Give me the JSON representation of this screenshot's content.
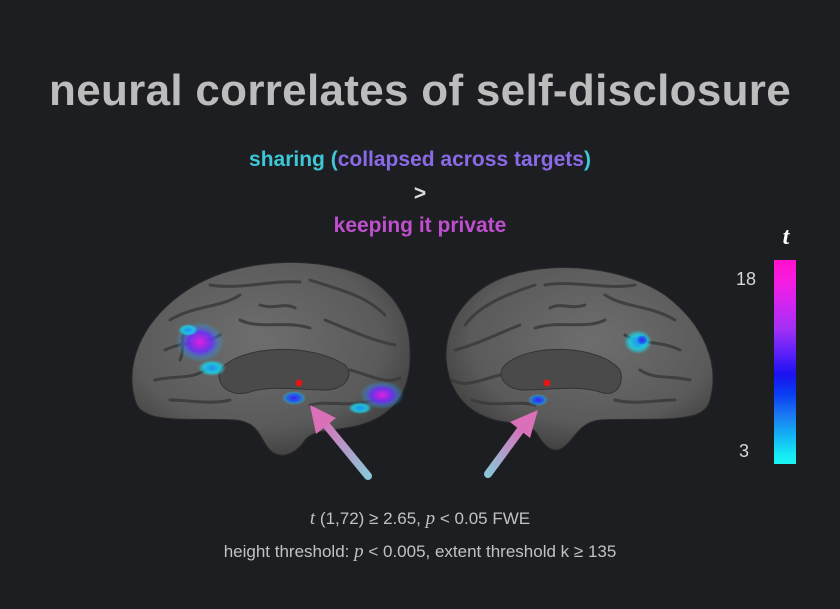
{
  "title": "neural correlates of self-disclosure",
  "contrast": {
    "line1_part1": "sharing (",
    "line1_part2": "collapsed across targets",
    "line1_part3": ")",
    "operator": ">",
    "line2": "keeping it private"
  },
  "colorbar": {
    "symbol": "t",
    "max_label": "18",
    "min_label": "3",
    "max_value": 18,
    "min_value": 3,
    "colors": [
      "#ff10cc",
      "#a030f6",
      "#1a12f0",
      "#1a7af2",
      "#1bf4f2"
    ]
  },
  "statistics": {
    "line1": {
      "t_symbol": "t",
      "df_and_threshold": " (1,72) ≥ 2.65, ",
      "p_symbol": "p",
      "p_threshold": " < 0.05 FWE"
    },
    "line2": {
      "prefix": "height threshold: ",
      "p_symbol": "p",
      "rest": " < 0.005,  extent threshold k ≥ 135"
    }
  },
  "figure": {
    "left_view": "medial-left-hemisphere",
    "right_view": "medial-right-hemisphere",
    "arrow_colors": [
      "#d970b8",
      "#8cc6d8"
    ]
  }
}
